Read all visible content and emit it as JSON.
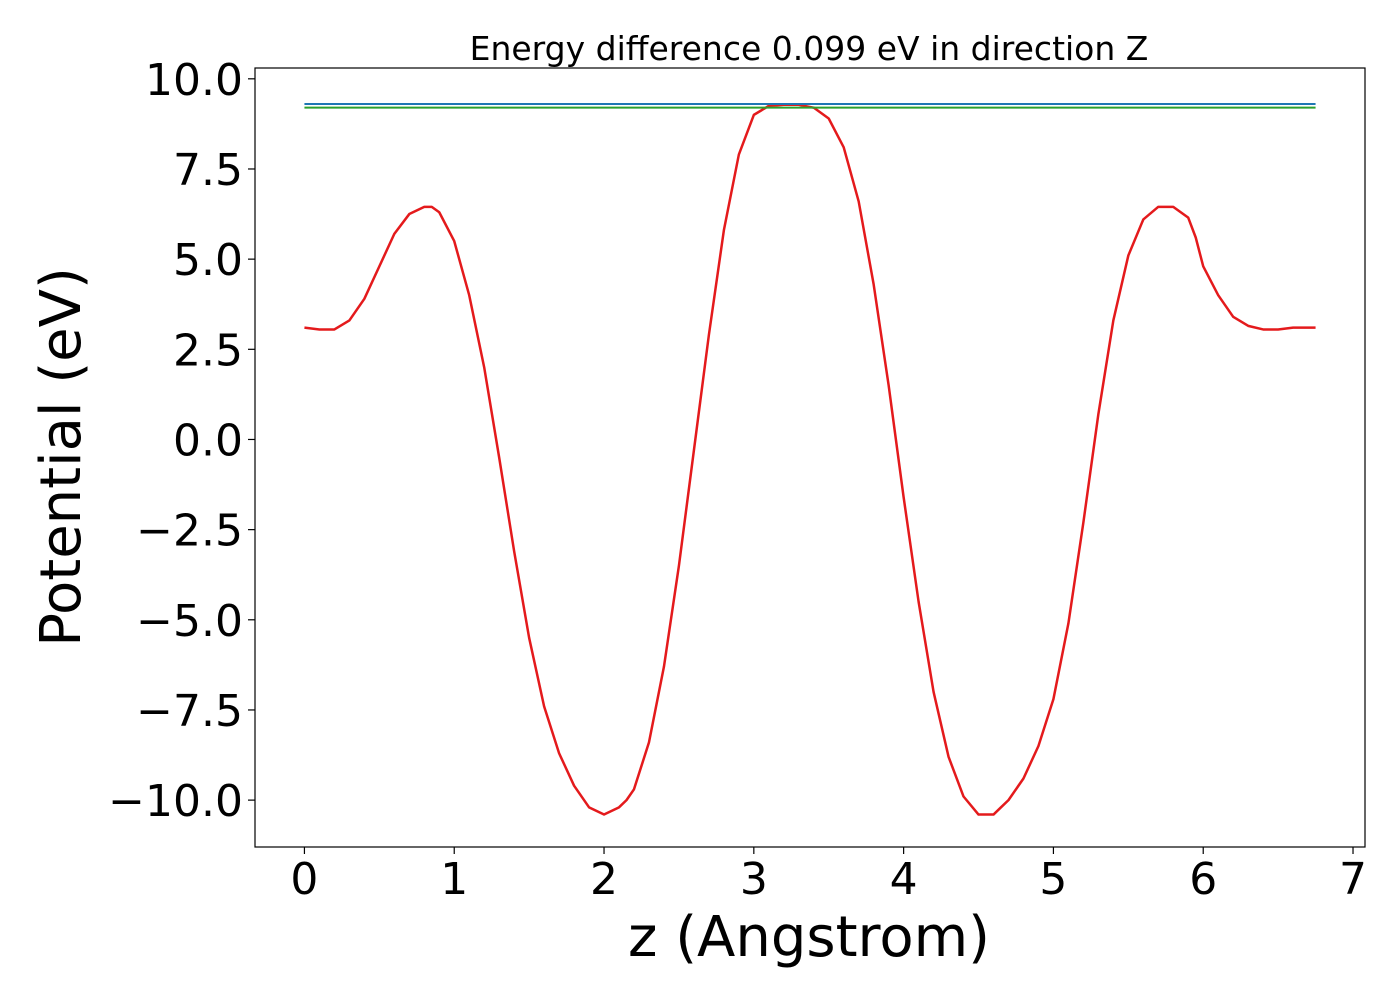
{
  "chart_data": {
    "type": "line",
    "title": "Energy difference 0.099 eV in direction Z",
    "xlabel": "z (Angstrom)",
    "ylabel": "Potential (eV)",
    "xlim": [
      -0.33,
      7.08
    ],
    "ylim": [
      -11.3,
      10.3
    ],
    "xticks": [
      0,
      1,
      2,
      3,
      4,
      5,
      6,
      7
    ],
    "xtick_labels": [
      "0",
      "1",
      "2",
      "3",
      "4",
      "5",
      "6",
      "7"
    ],
    "yticks": [
      10.0,
      7.5,
      5.0,
      2.5,
      0.0,
      -2.5,
      -5.0,
      -7.5,
      -10.0
    ],
    "ytick_labels": [
      "10.0",
      "7.5",
      "5.0",
      "2.5",
      "0.0",
      "−2.5",
      "−5.0",
      "−7.5",
      "−10.0"
    ],
    "grid": false,
    "legend": "none",
    "series": [
      {
        "color": "#e41a1c",
        "x": [
          0,
          0.1,
          0.2,
          0.3,
          0.4,
          0.5,
          0.6,
          0.7,
          0.8,
          0.85,
          0.9,
          1.0,
          1.1,
          1.2,
          1.3,
          1.4,
          1.5,
          1.6,
          1.7,
          1.8,
          1.9,
          2.0,
          2.1,
          2.15,
          2.2,
          2.3,
          2.4,
          2.5,
          2.6,
          2.7,
          2.8,
          2.9,
          3.0,
          3.1,
          3.2,
          3.3,
          3.4,
          3.5,
          3.6,
          3.7,
          3.8,
          3.9,
          4.0,
          4.1,
          4.2,
          4.3,
          4.4,
          4.5,
          4.6,
          4.65,
          4.7,
          4.8,
          4.9,
          5.0,
          5.1,
          5.2,
          5.3,
          5.4,
          5.5,
          5.6,
          5.7,
          5.8,
          5.9,
          5.95,
          6.0,
          6.1,
          6.2,
          6.3,
          6.4,
          6.5,
          6.6,
          6.7,
          6.75
        ],
        "y": [
          3.1,
          3.05,
          3.05,
          3.3,
          3.9,
          4.8,
          5.7,
          6.25,
          6.45,
          6.45,
          6.3,
          5.5,
          4.0,
          2.0,
          -0.5,
          -3.1,
          -5.5,
          -7.4,
          -8.7,
          -9.6,
          -10.2,
          -10.4,
          -10.2,
          -10.0,
          -9.7,
          -8.4,
          -6.3,
          -3.5,
          -0.3,
          2.9,
          5.8,
          7.9,
          9.0,
          9.25,
          9.28,
          9.28,
          9.2,
          8.9,
          8.1,
          6.6,
          4.3,
          1.5,
          -1.6,
          -4.5,
          -7.0,
          -8.8,
          -9.9,
          -10.4,
          -10.4,
          -10.2,
          -10.0,
          -9.4,
          -8.5,
          -7.2,
          -5.1,
          -2.3,
          0.7,
          3.3,
          5.1,
          6.1,
          6.45,
          6.45,
          6.15,
          5.6,
          4.8,
          4.0,
          3.4,
          3.15,
          3.05,
          3.05,
          3.1,
          3.1,
          3.1
        ]
      },
      {
        "color": "#1f77b4",
        "x": [
          0,
          6.75
        ],
        "y": [
          9.3,
          9.3
        ]
      },
      {
        "color": "#2ca02c",
        "x": [
          0,
          6.75
        ],
        "y": [
          9.2,
          9.2
        ]
      }
    ]
  }
}
